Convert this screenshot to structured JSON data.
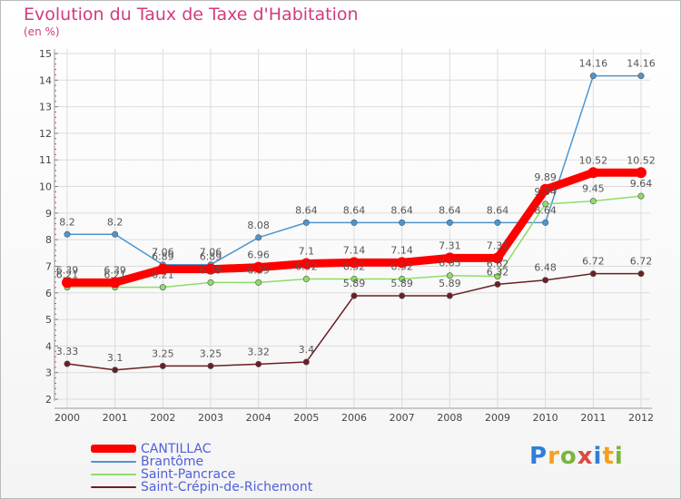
{
  "header": {
    "title": "Evolution du Taux de Taxe d'Habitation",
    "subtitle": "(en %)"
  },
  "logo": {
    "letters": [
      "P",
      "r",
      "o",
      "x",
      "i",
      "t",
      "i"
    ],
    "colors": [
      "#2f7fd6",
      "#f3a11b",
      "#7ab63a",
      "#d94b3d",
      "#2f7fd6",
      "#f3a11b",
      "#7ab63a"
    ]
  },
  "chart_data": {
    "type": "line",
    "title": "Evolution du Taux de Taxe d'Habitation",
    "ylabel": "(en %)",
    "x": [
      "2000",
      "2001",
      "2002",
      "2003",
      "2004",
      "2005",
      "2006",
      "2007",
      "2008",
      "2009",
      "2010",
      "2011",
      "2012"
    ],
    "ylim": [
      2,
      15
    ],
    "yticks": [
      "2",
      "3",
      "4",
      "5",
      "6",
      "7",
      "8",
      "9",
      "10",
      "11",
      "12",
      "13",
      "14",
      "15"
    ],
    "grid": true,
    "legend_position": "bottom-left",
    "series": [
      {
        "name": "CANTILLAC",
        "color": "#ff0000",
        "emphasis": true,
        "values": [
          6.39,
          6.39,
          6.89,
          6.89,
          6.96,
          7.1,
          7.14,
          7.14,
          7.31,
          7.31,
          9.89,
          10.52,
          10.52
        ],
        "labels": [
          "6.39",
          "6.39",
          "6.89",
          "6.89",
          "6.96",
          "7.1",
          "7.14",
          "7.14",
          "7.31",
          "7.31",
          "9.89",
          "10.52",
          "10.52"
        ]
      },
      {
        "name": "Brantôme",
        "color": "#4d95d0",
        "emphasis": false,
        "values": [
          8.2,
          8.2,
          7.06,
          7.06,
          8.08,
          8.64,
          8.64,
          8.64,
          8.64,
          8.64,
          8.64,
          14.16,
          14.16
        ],
        "labels": [
          "8.2",
          "8.2",
          "7.06",
          "7.06",
          "8.08",
          "8.64",
          "8.64",
          "8.64",
          "8.64",
          "8.64",
          "8.64",
          "14.16",
          "14.16"
        ]
      },
      {
        "name": "Saint-Pancrace",
        "color": "#8fdc6a",
        "emphasis": false,
        "values": [
          6.21,
          6.21,
          6.21,
          6.39,
          6.39,
          6.52,
          6.52,
          6.52,
          6.65,
          6.62,
          9.34,
          9.45,
          9.64
        ],
        "labels": [
          "6.21",
          "6.21",
          "6.21",
          "6.39",
          "6.39",
          "6.52",
          "6.52",
          "6.52",
          "6.65",
          "6.62",
          "9.34",
          "9.45",
          "9.64"
        ]
      },
      {
        "name": "Saint-Crépin-de-Richemont",
        "color": "#6b1f24",
        "emphasis": false,
        "values": [
          3.33,
          3.1,
          3.25,
          3.25,
          3.32,
          3.4,
          5.89,
          5.89,
          5.89,
          6.32,
          6.48,
          6.72,
          6.72
        ],
        "labels": [
          "3.33",
          "3.1",
          "3.25",
          "3.25",
          "3.32",
          "3.4",
          "5.89",
          "5.89",
          "5.89",
          "6.32",
          "6.48",
          "6.72",
          "6.72"
        ]
      }
    ]
  }
}
